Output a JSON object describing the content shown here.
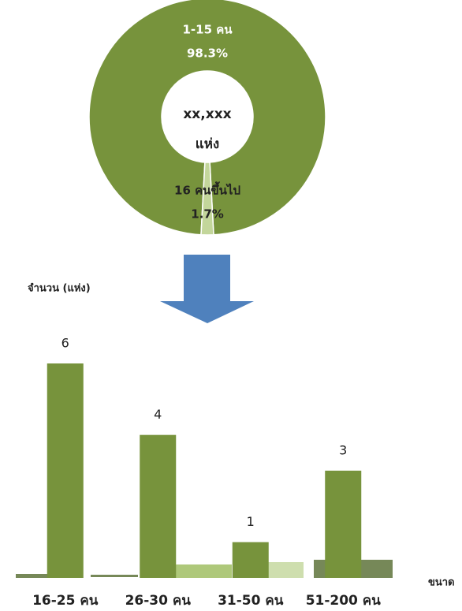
{
  "chart_data": [
    {
      "type": "pie",
      "categories": [
        "1-15 คน",
        "16 คนขึ้นไป"
      ],
      "values": [
        98.3,
        1.7
      ],
      "value_labels": [
        "98.3%",
        "1.7%"
      ],
      "colors": [
        "#77933c",
        "#c3d69b"
      ],
      "center_text": [
        "xx,xxx",
        "แห่ง"
      ]
    },
    {
      "type": "bar",
      "y_label": "จำนวน (แห่ง)",
      "x_label": "ขนาด",
      "categories": [
        "16-25 คน",
        "26-30 คน",
        "31-50 คน",
        "51-200 คน"
      ],
      "values": [
        6,
        4,
        1,
        3
      ],
      "color": "#77933c",
      "ylim": [
        0,
        6
      ]
    }
  ]
}
